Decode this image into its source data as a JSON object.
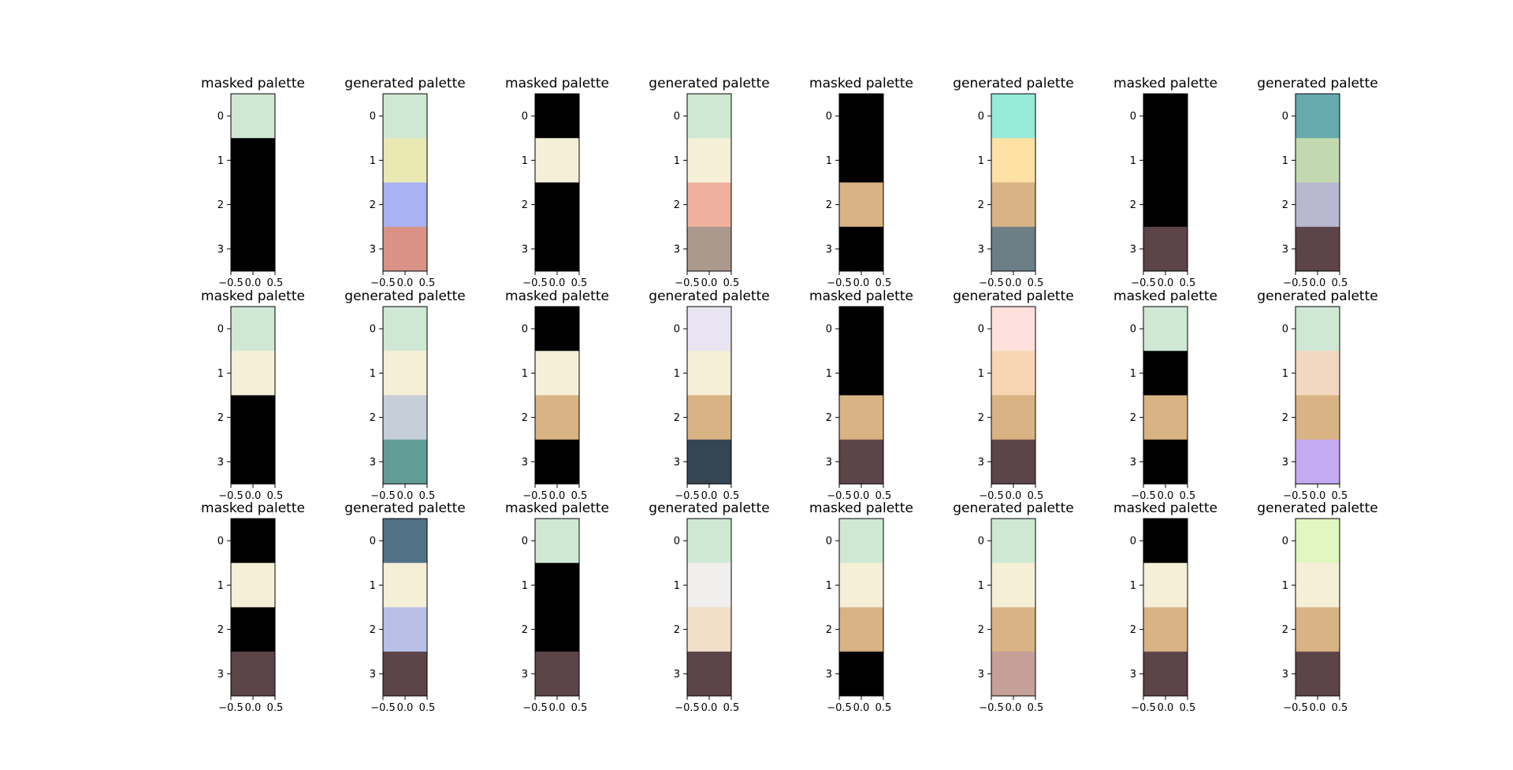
{
  "chart_data": {
    "type": "heatmap",
    "grid": {
      "rows": 3,
      "cols": 8
    },
    "x_ticks": [
      "−0.5",
      "0.0",
      "0.5"
    ],
    "y_ticks": [
      "0",
      "1",
      "2",
      "3"
    ],
    "xlim": [
      -0.5,
      0.5
    ],
    "ylim": [
      3.5,
      -0.5
    ],
    "panels": [
      {
        "title": "masked palette",
        "colors": [
          "#cfe8d4",
          "#000000",
          "#000000",
          "#000000"
        ]
      },
      {
        "title": "generated palette",
        "colors": [
          "#cfe8d4",
          "#ebe9b3",
          "#a9b2f2",
          "#d99285"
        ]
      },
      {
        "title": "masked palette",
        "colors": [
          "#000000",
          "#f5efd7",
          "#000000",
          "#000000"
        ]
      },
      {
        "title": "generated palette",
        "colors": [
          "#cfe8d4",
          "#f5efd7",
          "#efb19d",
          "#ab998d"
        ]
      },
      {
        "title": "masked palette",
        "colors": [
          "#000000",
          "#000000",
          "#d9b384",
          "#000000"
        ]
      },
      {
        "title": "generated palette",
        "colors": [
          "#96ead8",
          "#fde1a5",
          "#d9b384",
          "#6c7e86"
        ]
      },
      {
        "title": "masked palette",
        "colors": [
          "#000000",
          "#000000",
          "#000000",
          "#5d4449"
        ]
      },
      {
        "title": "generated palette",
        "colors": [
          "#67aaad",
          "#c2d8ae",
          "#b8b9d1",
          "#5d4449"
        ]
      },
      {
        "title": "masked palette",
        "colors": [
          "#cfe8d4",
          "#f5efd7",
          "#000000",
          "#000000"
        ]
      },
      {
        "title": "generated palette",
        "colors": [
          "#cfe8d4",
          "#f5efd7",
          "#c6ced7",
          "#619d94"
        ]
      },
      {
        "title": "masked palette",
        "colors": [
          "#000000",
          "#f5efd7",
          "#d9b384",
          "#000000"
        ]
      },
      {
        "title": "generated palette",
        "colors": [
          "#e8e4f1",
          "#f5efd7",
          "#d9b384",
          "#354552"
        ]
      },
      {
        "title": "masked palette",
        "colors": [
          "#000000",
          "#000000",
          "#d9b384",
          "#5d4449"
        ]
      },
      {
        "title": "generated palette",
        "colors": [
          "#fee0dc",
          "#f6d6b2",
          "#d9b384",
          "#5d4449"
        ]
      },
      {
        "title": "masked palette",
        "colors": [
          "#cfe8d4",
          "#000000",
          "#d9b384",
          "#000000"
        ]
      },
      {
        "title": "generated palette",
        "colors": [
          "#cfe8d4",
          "#f3d8c1",
          "#d9b384",
          "#c4aaf0"
        ]
      },
      {
        "title": "masked palette",
        "colors": [
          "#000000",
          "#f5efd7",
          "#000000",
          "#5d4449"
        ]
      },
      {
        "title": "generated palette",
        "colors": [
          "#527287",
          "#f5efd7",
          "#b8c0e7",
          "#5d4449"
        ]
      },
      {
        "title": "masked palette",
        "colors": [
          "#cfe8d4",
          "#000000",
          "#000000",
          "#5d4449"
        ]
      },
      {
        "title": "generated palette",
        "colors": [
          "#cfe8d4",
          "#f0efed",
          "#f1dfc9",
          "#5d4449"
        ]
      },
      {
        "title": "masked palette",
        "colors": [
          "#cfe8d4",
          "#f5efd7",
          "#d9b384",
          "#000000"
        ]
      },
      {
        "title": "generated palette",
        "colors": [
          "#cfe8d4",
          "#f5efd7",
          "#d9b384",
          "#c4a098"
        ]
      },
      {
        "title": "masked palette",
        "colors": [
          "#000000",
          "#f5efd7",
          "#d9b384",
          "#5d4449"
        ]
      },
      {
        "title": "generated palette",
        "colors": [
          "#e1f6c0",
          "#f5efd7",
          "#d9b384",
          "#5d4449"
        ]
      }
    ]
  }
}
